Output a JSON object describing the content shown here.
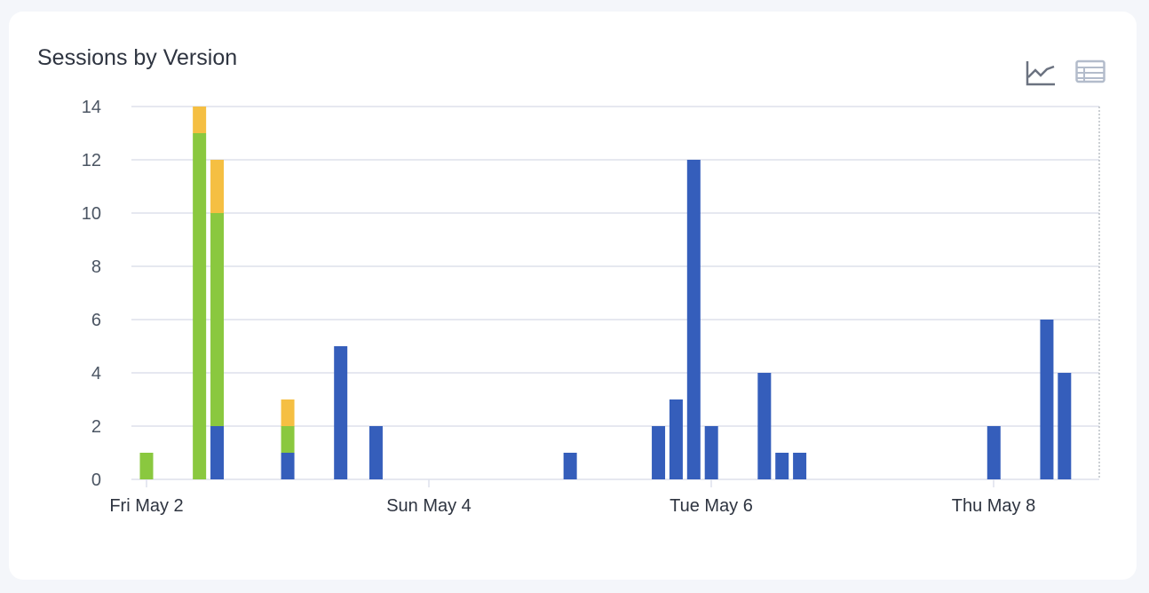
{
  "card": {
    "title": "Sessions by Version"
  },
  "icons": {
    "line_view": "line-chart-icon",
    "table_view": "table-icon"
  },
  "chart_data": {
    "type": "bar",
    "stacked": true,
    "bin": "3 hours",
    "x": [
      "May 2 00:00",
      "May 2 09:00",
      "May 2 12:00",
      "May 3 00:00",
      "May 3 09:00",
      "May 3 15:00",
      "May 5 00:00",
      "May 5 15:00",
      "May 5 18:00",
      "May 5 21:00",
      "May 6 00:00",
      "May 6 09:00",
      "May 6 12:00",
      "May 6 15:00",
      "May 8 00:00",
      "May 8 09:00",
      "May 8 12:00"
    ],
    "series": [
      {
        "color": "#355ebb",
        "values": [
          0,
          0,
          2,
          1,
          5,
          2,
          1,
          2,
          3,
          12,
          2,
          4,
          1,
          1,
          2,
          6,
          4
        ]
      },
      {
        "color": "#8ac83f",
        "values": [
          1,
          13,
          8,
          1,
          0,
          0,
          0,
          0,
          0,
          0,
          0,
          0,
          0,
          0,
          0,
          0,
          0
        ]
      },
      {
        "color": "#f5bf42",
        "values": [
          0,
          1,
          2,
          1,
          0,
          0,
          0,
          0,
          0,
          0,
          0,
          0,
          0,
          0,
          0,
          0,
          0
        ]
      }
    ],
    "ylim": [
      0,
      14
    ],
    "yticks": [
      "0",
      "2",
      "4",
      "6",
      "8",
      "10",
      "12",
      "14"
    ],
    "xticks": [
      "Fri May 2",
      "Sun May 4",
      "Tue May 6",
      "Thu May 8"
    ],
    "grid": true,
    "legend": "none"
  }
}
